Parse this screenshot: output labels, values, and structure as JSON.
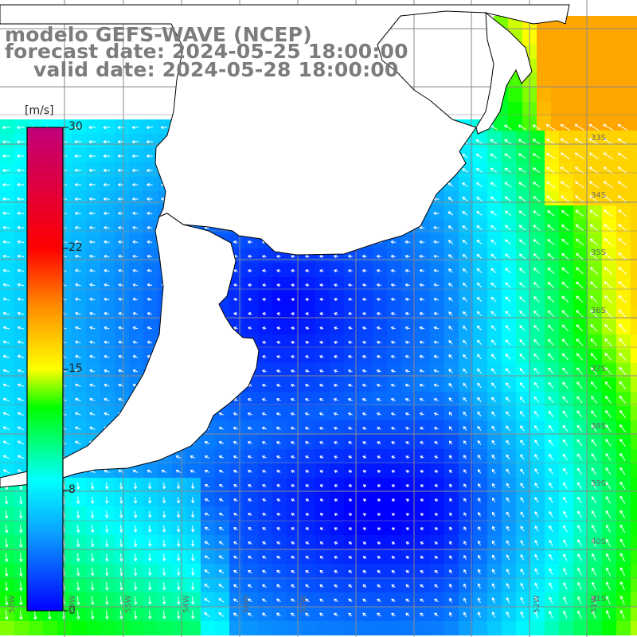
{
  "header": {
    "title": "modelo GEFS-WAVE (NCEP)",
    "forecast": "forecast date: 2024-05-25 18:00:00",
    "valid": "valid date: 2024-05-28 18:00:00"
  },
  "colorbar": {
    "unit": "[m/s]",
    "ticks": [
      "30",
      "22",
      "15",
      "8",
      "0"
    ],
    "stops": [
      "#0000ff",
      "#0aa0ff",
      "#00ffff",
      "#00ff00",
      "#ffff00",
      "#ff8c00",
      "#ff0000",
      "#c0007a"
    ]
  },
  "grid_labels": {
    "lat": [
      "33S",
      "34S",
      "35S",
      "36S",
      "37S",
      "38S",
      "39S",
      "40S",
      "41S"
    ],
    "lon": [
      "58W",
      "59W",
      "55W",
      "54W",
      "56W",
      "57W",
      "52W",
      "51W"
    ]
  },
  "map_colors": {
    "land": "#ffffff",
    "coast": "#000000",
    "grid": "#8a8a8a",
    "arrows": "#ffffff"
  }
}
